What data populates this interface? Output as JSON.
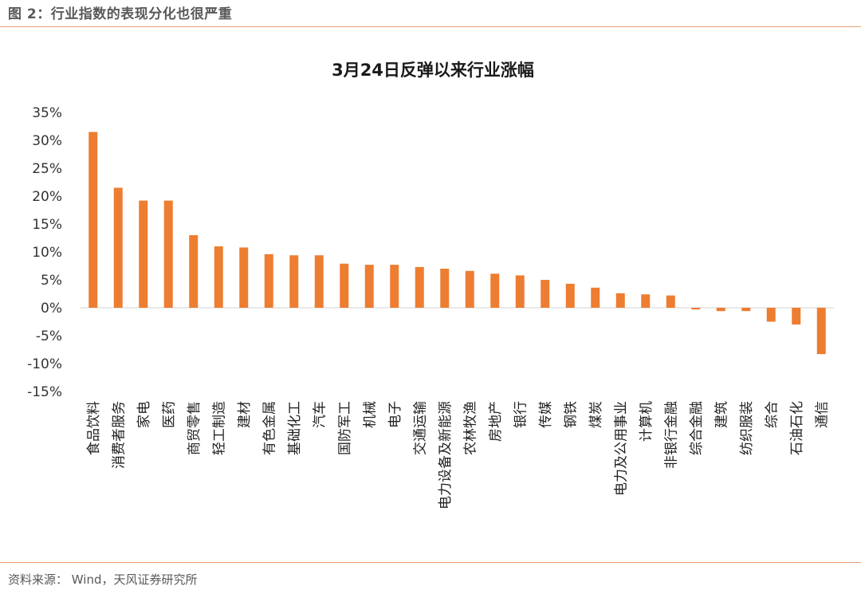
{
  "figure": {
    "caption": "图 2：行业指数的表现分化也很严重",
    "source": "资料来源：  Wind，天风证券研究所"
  },
  "colors": {
    "bar": "#ed7d31",
    "rule": "#e9a276",
    "axis": "#d9d9d9"
  },
  "chart_data": {
    "type": "bar",
    "title": "3月24日反弹以来行业涨幅",
    "ylim": [
      -15,
      35
    ],
    "yticks": [
      35,
      30,
      25,
      20,
      15,
      10,
      5,
      0,
      -5,
      -10,
      -15
    ],
    "ytick_labels": [
      "35%",
      "30%",
      "25%",
      "20%",
      "15%",
      "10%",
      "5%",
      "0%",
      "-5%",
      "-10%",
      "-15%"
    ],
    "unit": "%",
    "grid": false,
    "legend": "none",
    "categories": [
      "食品饮料",
      "消费者服务",
      "家电",
      "医药",
      "商贸零售",
      "轻工制造",
      "建材",
      "有色金属",
      "基础化工",
      "汽车",
      "国防军工",
      "机械",
      "电子",
      "交通运输",
      "电力设备及新能源",
      "农林牧渔",
      "房地产",
      "银行",
      "传媒",
      "钢铁",
      "煤炭",
      "电力及公用事业",
      "计算机",
      "非银行金融",
      "综合金融",
      "建筑",
      "纺织服装",
      "综合",
      "石油石化",
      "通信"
    ],
    "values": [
      31.5,
      21.5,
      19.2,
      19.2,
      13.0,
      11.0,
      10.8,
      9.6,
      9.4,
      9.4,
      7.9,
      7.7,
      7.7,
      7.3,
      7.0,
      6.6,
      6.1,
      5.8,
      5.0,
      4.3,
      3.6,
      2.6,
      2.4,
      2.2,
      -0.3,
      -0.6,
      -0.6,
      -2.5,
      -3.0,
      -8.3
    ]
  }
}
